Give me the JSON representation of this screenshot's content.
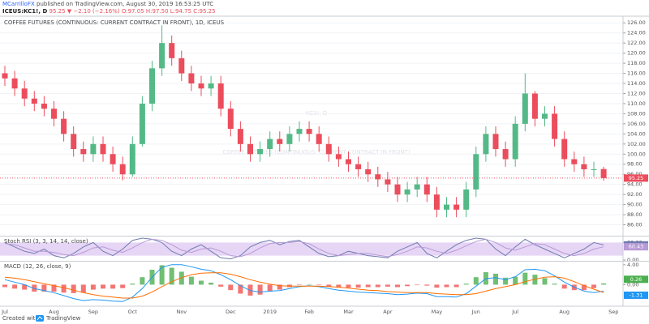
{
  "header": {
    "author": "MCarrilloFX",
    "published": "published on TradingView.com, August 30, 2019 16:53:25 UTC",
    "symbol": "ICEUS:KC1!, D",
    "change": "95.25 ▼ −2.10 (−2.16%)",
    "ohlc": "O:97.05 H:97.50 L:94.75 C:95.25"
  },
  "footer": {
    "created": "Created with",
    "brand": "TradingView"
  },
  "chart_data": [
    {
      "type": "candlestick",
      "title": "COFFEE FUTURES (CONTINUOUS: CURRENT CONTRACT IN FRONT), 1D, ICEUS",
      "watermark": "KC1!, D",
      "watermark_subtitle": "COFFEE FUTURES (CONTINUOUS: CURRENT CONTRACT IN FRONT)",
      "up_color": "#53b987",
      "down_color": "#eb4d5c",
      "grid": true,
      "categories": [
        "Jul",
        null,
        null,
        null,
        null,
        "Aug",
        null,
        null,
        null,
        "Sep",
        null,
        null,
        null,
        "Oct",
        null,
        null,
        null,
        null,
        "Nov",
        null,
        null,
        null,
        null,
        "Dec",
        null,
        null,
        null,
        "2019",
        null,
        null,
        null,
        "Feb",
        null,
        null,
        null,
        "Mar",
        null,
        null,
        null,
        "Apr",
        null,
        null,
        null,
        null,
        "May",
        null,
        null,
        null,
        "Jun",
        null,
        null,
        null,
        "Jul",
        null,
        null,
        null,
        null,
        "Aug",
        null,
        null,
        null,
        null,
        "Sep"
      ],
      "open": [
        116,
        115,
        113,
        111,
        110,
        109,
        107,
        104,
        101,
        100,
        102,
        100,
        98,
        96,
        102,
        110,
        117,
        122,
        119,
        116,
        114,
        113,
        114,
        109,
        105,
        102,
        100,
        101,
        103,
        102,
        104,
        105,
        104,
        102,
        100,
        99,
        98,
        97,
        96,
        95,
        94,
        92,
        93,
        94,
        92,
        89,
        90,
        89,
        93,
        100,
        104,
        101,
        99,
        106,
        112,
        107,
        108,
        103,
        99,
        98,
        97,
        97.05,
        null
      ],
      "high": [
        117.5,
        116.5,
        114.5,
        112.5,
        111.5,
        110.5,
        108.5,
        105.5,
        102.5,
        103.5,
        103.5,
        101.5,
        99.5,
        103.5,
        111.5,
        118.5,
        125.5,
        123.5,
        120.5,
        117.5,
        115.5,
        115.5,
        115.5,
        110.5,
        106.5,
        103.5,
        102.5,
        104.5,
        104.5,
        105.5,
        106.5,
        106.5,
        105.5,
        103.5,
        101.5,
        100.5,
        99.5,
        98.5,
        97.5,
        96.5,
        95.5,
        94.5,
        95.5,
        95.5,
        93.5,
        91.5,
        91.5,
        94.5,
        101.5,
        105.5,
        105.5,
        102.5,
        107.5,
        116,
        112.5,
        109.5,
        109.5,
        104.5,
        100.5,
        99.5,
        98.5,
        97.5,
        null
      ],
      "low": [
        113.5,
        111.5,
        109.5,
        108.5,
        107.5,
        105.5,
        102.5,
        99.5,
        98.5,
        98.5,
        98.5,
        96.5,
        94.8,
        95.5,
        101.5,
        108.5,
        115.5,
        117.5,
        114.5,
        112.5,
        111.5,
        111.5,
        107.5,
        103.5,
        100.5,
        98.5,
        98.5,
        99.5,
        100.5,
        100.5,
        102.5,
        102.5,
        100.5,
        98.5,
        97.5,
        96.5,
        95.5,
        94.5,
        93.5,
        92.5,
        90.5,
        90.5,
        91.5,
        90.5,
        87.5,
        87.5,
        87.5,
        87.5,
        91.5,
        98.5,
        99.5,
        97.5,
        97.5,
        104.5,
        105.5,
        105.5,
        101.5,
        97.5,
        96.5,
        95.5,
        95.5,
        94.75,
        null
      ],
      "close": [
        115,
        113,
        111,
        110,
        109,
        107,
        104,
        101,
        100,
        102,
        100,
        98,
        96,
        102,
        110,
        117,
        122,
        119,
        116,
        114,
        113,
        114,
        109,
        105,
        102,
        100,
        101,
        103,
        102,
        104,
        105,
        104,
        102,
        100,
        99,
        98,
        97,
        96,
        95,
        94,
        92,
        93,
        94,
        92,
        89,
        90,
        89,
        93,
        100,
        104,
        101,
        99,
        106,
        112,
        107,
        108,
        103,
        99,
        98,
        97,
        97,
        95.25,
        null
      ],
      "ylim": [
        84,
        127
      ],
      "yticks": [
        {
          "value": 86,
          "label": "86.00"
        },
        {
          "value": 88,
          "label": "88.00"
        },
        {
          "value": 90,
          "label": "90.00"
        },
        {
          "value": 92,
          "label": "92.00"
        },
        {
          "value": 94,
          "label": "94.00"
        },
        {
          "value": 96,
          "label": "96.00"
        },
        {
          "value": 98,
          "label": "98.00"
        },
        {
          "value": 100,
          "label": "100.00"
        },
        {
          "value": 102,
          "label": "102.00"
        },
        {
          "value": 104,
          "label": "104.00"
        },
        {
          "value": 106,
          "label": "106.00"
        },
        {
          "value": 108,
          "label": "108.00"
        },
        {
          "value": 110,
          "label": "110.00"
        },
        {
          "value": 112,
          "label": "112.00"
        },
        {
          "value": 114,
          "label": "114.00"
        },
        {
          "value": 116,
          "label": "116.00"
        },
        {
          "value": 118,
          "label": "118.00"
        },
        {
          "value": 120,
          "label": "120.00"
        },
        {
          "value": 122,
          "label": "122.00"
        },
        {
          "value": 124,
          "label": "124.00"
        },
        {
          "value": 126,
          "label": "126.00"
        }
      ]
    },
    {
      "type": "line",
      "title": "Stoch RSI (3, 3, 14, 14, close)",
      "band": [
        20,
        80
      ],
      "band_color": "#e6d5f5",
      "series": [
        {
          "color": "#6f7bb0",
          "values": [
            80,
            60,
            40,
            30,
            50,
            20,
            10,
            30,
            60,
            80,
            40,
            20,
            50,
            90,
            100,
            95,
            80,
            40,
            20,
            50,
            70,
            40,
            10,
            5,
            20,
            60,
            80,
            90,
            70,
            85,
            90,
            60,
            30,
            15,
            20,
            40,
            30,
            20,
            15,
            10,
            40,
            60,
            80,
            30,
            10,
            40,
            70,
            90,
            100,
            95,
            50,
            20,
            60,
            95,
            70,
            50,
            30,
            10,
            30,
            50,
            80,
            69.08,
            null
          ]
        },
        {
          "color": "#b79ad6",
          "values": [
            75,
            70,
            55,
            40,
            40,
            35,
            25,
            20,
            35,
            55,
            60,
            45,
            35,
            55,
            80,
            95,
            90,
            70,
            45,
            35,
            50,
            55,
            40,
            20,
            15,
            30,
            55,
            75,
            80,
            80,
            85,
            75,
            50,
            30,
            20,
            25,
            30,
            30,
            22,
            15,
            25,
            40,
            60,
            55,
            40,
            30,
            45,
            65,
            85,
            95,
            80,
            55,
            45,
            60,
            75,
            70,
            50,
            30,
            20,
            30,
            50,
            60.43,
            null
          ]
        }
      ],
      "ylim": [
        0,
        100
      ],
      "yticks": [
        {
          "value": 0,
          "label": "0.00"
        },
        {
          "value": 80,
          "label": "80.00"
        }
      ]
    },
    {
      "type": "macd",
      "title": "MACD (12, 26, close, 9)",
      "up_color": "#4caf50",
      "down_color": "#ef5350",
      "histogram": [
        -0.5,
        -0.8,
        -1,
        -1.4,
        -1.4,
        -1.4,
        -1.6,
        -1.7,
        -1.6,
        -1,
        -0.8,
        -0.8,
        -0.7,
        0.2,
        1.5,
        3,
        3.9,
        3.4,
        2.6,
        1.6,
        0.8,
        0.4,
        -0.4,
        -1.1,
        -1.8,
        -2.2,
        -2,
        -1.4,
        -1,
        -0.5,
        -0.1,
        0.1,
        -0.1,
        -0.4,
        -0.6,
        -0.6,
        -0.6,
        -0.5,
        -0.5,
        -0.4,
        -0.5,
        -0.3,
        -0.1,
        -0.2,
        -0.6,
        -0.5,
        -0.5,
        0.2,
        1.5,
        2.5,
        2.2,
        1.4,
        1.6,
        2.4,
        2,
        1.3,
        0.2,
        -0.8,
        -1.1,
        -1.1,
        -0.7,
        0.26,
        null
      ],
      "series": [
        {
          "color": "#2196f3",
          "values": [
            1,
            0.5,
            0,
            -0.8,
            -1.2,
            -1.6,
            -2.2,
            -2.8,
            -3.2,
            -3,
            -3.1,
            -3.3,
            -3.4,
            -2.5,
            -0.8,
            1.5,
            3.5,
            4,
            4,
            3.6,
            3.1,
            2.8,
            2,
            1,
            -0.2,
            -1.2,
            -1.5,
            -1.3,
            -1.2,
            -0.8,
            -0.4,
            -0.2,
            -0.4,
            -0.8,
            -1.1,
            -1.3,
            -1.5,
            -1.6,
            -1.7,
            -1.8,
            -2,
            -1.9,
            -1.7,
            -1.8,
            -2.4,
            -2.4,
            -2.5,
            -1.8,
            -0.3,
            1.2,
            1.4,
            1,
            1.6,
            3,
            3.1,
            2.8,
            1.8,
            0.5,
            -0.5,
            -1.3,
            -1.6,
            -1.31,
            null
          ]
        },
        {
          "color": "#ff6d00",
          "values": [
            1.5,
            1.3,
            1,
            0.6,
            0.2,
            -0.2,
            -0.6,
            -1.1,
            -1.6,
            -2,
            -2.3,
            -2.5,
            -2.7,
            -2.7,
            -2.3,
            -1.5,
            -0.4,
            0.6,
            1.4,
            2,
            2.3,
            2.4,
            2.4,
            2.1,
            1.6,
            1,
            0.5,
            0.1,
            -0.2,
            -0.3,
            -0.3,
            -0.3,
            -0.3,
            -0.4,
            -0.5,
            -0.7,
            -0.9,
            -1.1,
            -1.2,
            -1.4,
            -1.5,
            -1.6,
            -1.6,
            -1.6,
            -1.8,
            -1.9,
            -2,
            -2,
            -1.8,
            -1.3,
            -0.8,
            -0.4,
            0,
            0.6,
            1.1,
            1.5,
            1.6,
            1.3,
            0.6,
            -0.2,
            -0.9,
            -1.57,
            null
          ]
        }
      ],
      "ylim": [
        -4,
        4.3
      ],
      "yticks": [
        {
          "value": 4,
          "label": "4.00"
        },
        {
          "value": 0,
          "label": "0.00"
        }
      ]
    }
  ]
}
